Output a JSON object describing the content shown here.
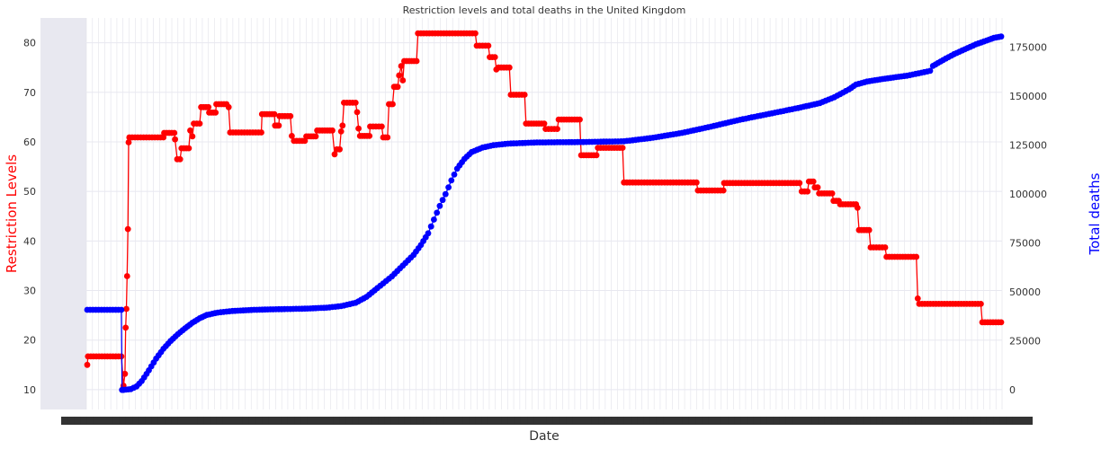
{
  "chart_data": {
    "type": "line",
    "title": "Restriction levels and total deaths in the United Kingdom",
    "xlabel": "Date",
    "ylabel_left": "Restriction Levels",
    "ylabel_right": "Total deaths",
    "left_axis": {
      "ylim": [
        6,
        85
      ],
      "ticks": [
        10,
        20,
        30,
        40,
        50,
        60,
        70,
        80
      ],
      "tick_labels": [
        "10",
        "20",
        "30",
        "40",
        "50",
        "60",
        "70",
        "80"
      ]
    },
    "right_axis": {
      "ylim": [
        -10000,
        190000
      ],
      "ticks": [
        0,
        25000,
        50000,
        75000,
        100000,
        125000,
        150000,
        175000
      ],
      "tick_labels": [
        "0",
        "25000",
        "50000",
        "75000",
        "100000",
        "125000",
        "150000",
        "175000"
      ]
    },
    "x_tick_labels_note": "x tick labels are overplotted and illegible",
    "grid": true,
    "series": [
      {
        "name": "Restriction Levels",
        "axis": "left",
        "color": "#ff0000",
        "points": [
          [
            0,
            15
          ],
          [
            1,
            16.7
          ],
          [
            47,
            16.7
          ],
          [
            50,
            10.8
          ],
          [
            52,
            13.2
          ],
          [
            53,
            22.5
          ],
          [
            54,
            26.3
          ],
          [
            55,
            32.9
          ],
          [
            56,
            42.4
          ],
          [
            57,
            59.9
          ],
          [
            58,
            60.9
          ],
          [
            105,
            60.9
          ],
          [
            106,
            61.8
          ],
          [
            120,
            61.8
          ],
          [
            121,
            60.5
          ],
          [
            124,
            56.5
          ],
          [
            128,
            56.5
          ],
          [
            130,
            58.7
          ],
          [
            140,
            58.7
          ],
          [
            142,
            62.3
          ],
          [
            145,
            61.1
          ],
          [
            147,
            63.7
          ],
          [
            155,
            63.7
          ],
          [
            157,
            67
          ],
          [
            167,
            67
          ],
          [
            168,
            65.9
          ],
          [
            177,
            65.9
          ],
          [
            178,
            67.6
          ],
          [
            192,
            67.6
          ],
          [
            195,
            67
          ],
          [
            197,
            61.9
          ],
          [
            240,
            61.9
          ],
          [
            241,
            65.6
          ],
          [
            258,
            65.6
          ],
          [
            259,
            63.3
          ],
          [
            264,
            63.3
          ],
          [
            265,
            65.2
          ],
          [
            280,
            65.2
          ],
          [
            282,
            61.2
          ],
          [
            285,
            60.2
          ],
          [
            300,
            60.2
          ],
          [
            302,
            61.1
          ],
          [
            315,
            61.1
          ],
          [
            317,
            62.3
          ],
          [
            338,
            62.3
          ],
          [
            341,
            57.5
          ],
          [
            344,
            58.5
          ],
          [
            348,
            58.5
          ],
          [
            350,
            62.1
          ],
          [
            352,
            63.3
          ],
          [
            354,
            67.9
          ],
          [
            370,
            67.9
          ],
          [
            372,
            66
          ],
          [
            374,
            62.7
          ],
          [
            376,
            61.2
          ],
          [
            389,
            61.2
          ],
          [
            390,
            63.1
          ],
          [
            406,
            63.1
          ],
          [
            408,
            60.9
          ],
          [
            414,
            60.9
          ],
          [
            416,
            67.6
          ],
          [
            421,
            67.6
          ],
          [
            423,
            71.1
          ],
          [
            428,
            71.1
          ],
          [
            430,
            73.4
          ],
          [
            433,
            75.3
          ],
          [
            435,
            72.4
          ],
          [
            437,
            76.3
          ],
          [
            454,
            76.3
          ],
          [
            456,
            81.9
          ],
          [
            535,
            81.9
          ],
          [
            537,
            79.4
          ],
          [
            553,
            79.4
          ],
          [
            555,
            77.1
          ],
          [
            562,
            77.1
          ],
          [
            564,
            74.6
          ],
          [
            567,
            75
          ],
          [
            582,
            75
          ],
          [
            584,
            69.5
          ],
          [
            603,
            69.5
          ],
          [
            605,
            63.7
          ],
          [
            630,
            63.7
          ],
          [
            632,
            62.6
          ],
          [
            648,
            62.6
          ],
          [
            650,
            64.5
          ],
          [
            679,
            64.5
          ],
          [
            681,
            57.3
          ],
          [
            702,
            57.3
          ],
          [
            704,
            58.8
          ],
          [
            738,
            58.8
          ],
          [
            740,
            51.8
          ],
          [
            840,
            51.8
          ],
          [
            842,
            50.2
          ],
          [
            877,
            50.2
          ],
          [
            878,
            51.7
          ],
          [
            982,
            51.7
          ],
          [
            985,
            50
          ],
          [
            993,
            50
          ],
          [
            995,
            52
          ],
          [
            1001,
            52
          ],
          [
            1003,
            50.8
          ],
          [
            1007,
            50.8
          ],
          [
            1009,
            49.6
          ],
          [
            1027,
            49.6
          ],
          [
            1029,
            48.1
          ],
          [
            1036,
            48.1
          ],
          [
            1038,
            47.4
          ],
          [
            1060,
            47.4
          ],
          [
            1062,
            46.7
          ],
          [
            1064,
            42.2
          ],
          [
            1078,
            42.2
          ],
          [
            1080,
            38.7
          ],
          [
            1100,
            38.7
          ],
          [
            1102,
            36.8
          ],
          [
            1143,
            36.8
          ],
          [
            1145,
            28.4
          ],
          [
            1147,
            27.3
          ],
          [
            1232,
            27.3
          ],
          [
            1234,
            23.6
          ],
          [
            1260,
            23.6
          ]
        ]
      },
      {
        "name": "Total deaths",
        "axis": "right",
        "color": "#0000ff",
        "points": [
          [
            0,
            40900
          ],
          [
            47,
            40900
          ],
          [
            48,
            0
          ],
          [
            50,
            0
          ],
          [
            60,
            400
          ],
          [
            68,
            1800
          ],
          [
            75,
            4500
          ],
          [
            85,
            10000
          ],
          [
            95,
            16000
          ],
          [
            105,
            21000
          ],
          [
            115,
            25000
          ],
          [
            125,
            28500
          ],
          [
            135,
            31500
          ],
          [
            145,
            34300
          ],
          [
            155,
            36600
          ],
          [
            165,
            38300
          ],
          [
            180,
            39500
          ],
          [
            200,
            40300
          ],
          [
            230,
            40900
          ],
          [
            260,
            41200
          ],
          [
            300,
            41500
          ],
          [
            330,
            42000
          ],
          [
            350,
            42800
          ],
          [
            370,
            44500
          ],
          [
            385,
            47500
          ],
          [
            400,
            52000
          ],
          [
            420,
            58000
          ],
          [
            435,
            63500
          ],
          [
            450,
            69000
          ],
          [
            460,
            74000
          ],
          [
            470,
            80000
          ],
          [
            478,
            87000
          ],
          [
            486,
            94000
          ],
          [
            494,
            100000
          ],
          [
            502,
            107000
          ],
          [
            510,
            113000
          ],
          [
            520,
            118000
          ],
          [
            530,
            121500
          ],
          [
            545,
            123800
          ],
          [
            560,
            125000
          ],
          [
            580,
            125800
          ],
          [
            620,
            126400
          ],
          [
            680,
            126600
          ],
          [
            740,
            127000
          ],
          [
            780,
            128800
          ],
          [
            820,
            131300
          ],
          [
            860,
            134500
          ],
          [
            900,
            138000
          ],
          [
            940,
            141000
          ],
          [
            980,
            144000
          ],
          [
            1010,
            146500
          ],
          [
            1030,
            149500
          ],
          [
            1050,
            153500
          ],
          [
            1060,
            156000
          ],
          [
            1075,
            157500
          ],
          [
            1100,
            159000
          ],
          [
            1130,
            160500
          ],
          [
            1150,
            162000
          ],
          [
            1162,
            163000
          ],
          [
            1166,
            165500
          ],
          [
            1180,
            168500
          ],
          [
            1195,
            171500
          ],
          [
            1210,
            174000
          ],
          [
            1225,
            176500
          ],
          [
            1240,
            178500
          ],
          [
            1250,
            179800
          ],
          [
            1260,
            180500
          ]
        ]
      }
    ]
  }
}
